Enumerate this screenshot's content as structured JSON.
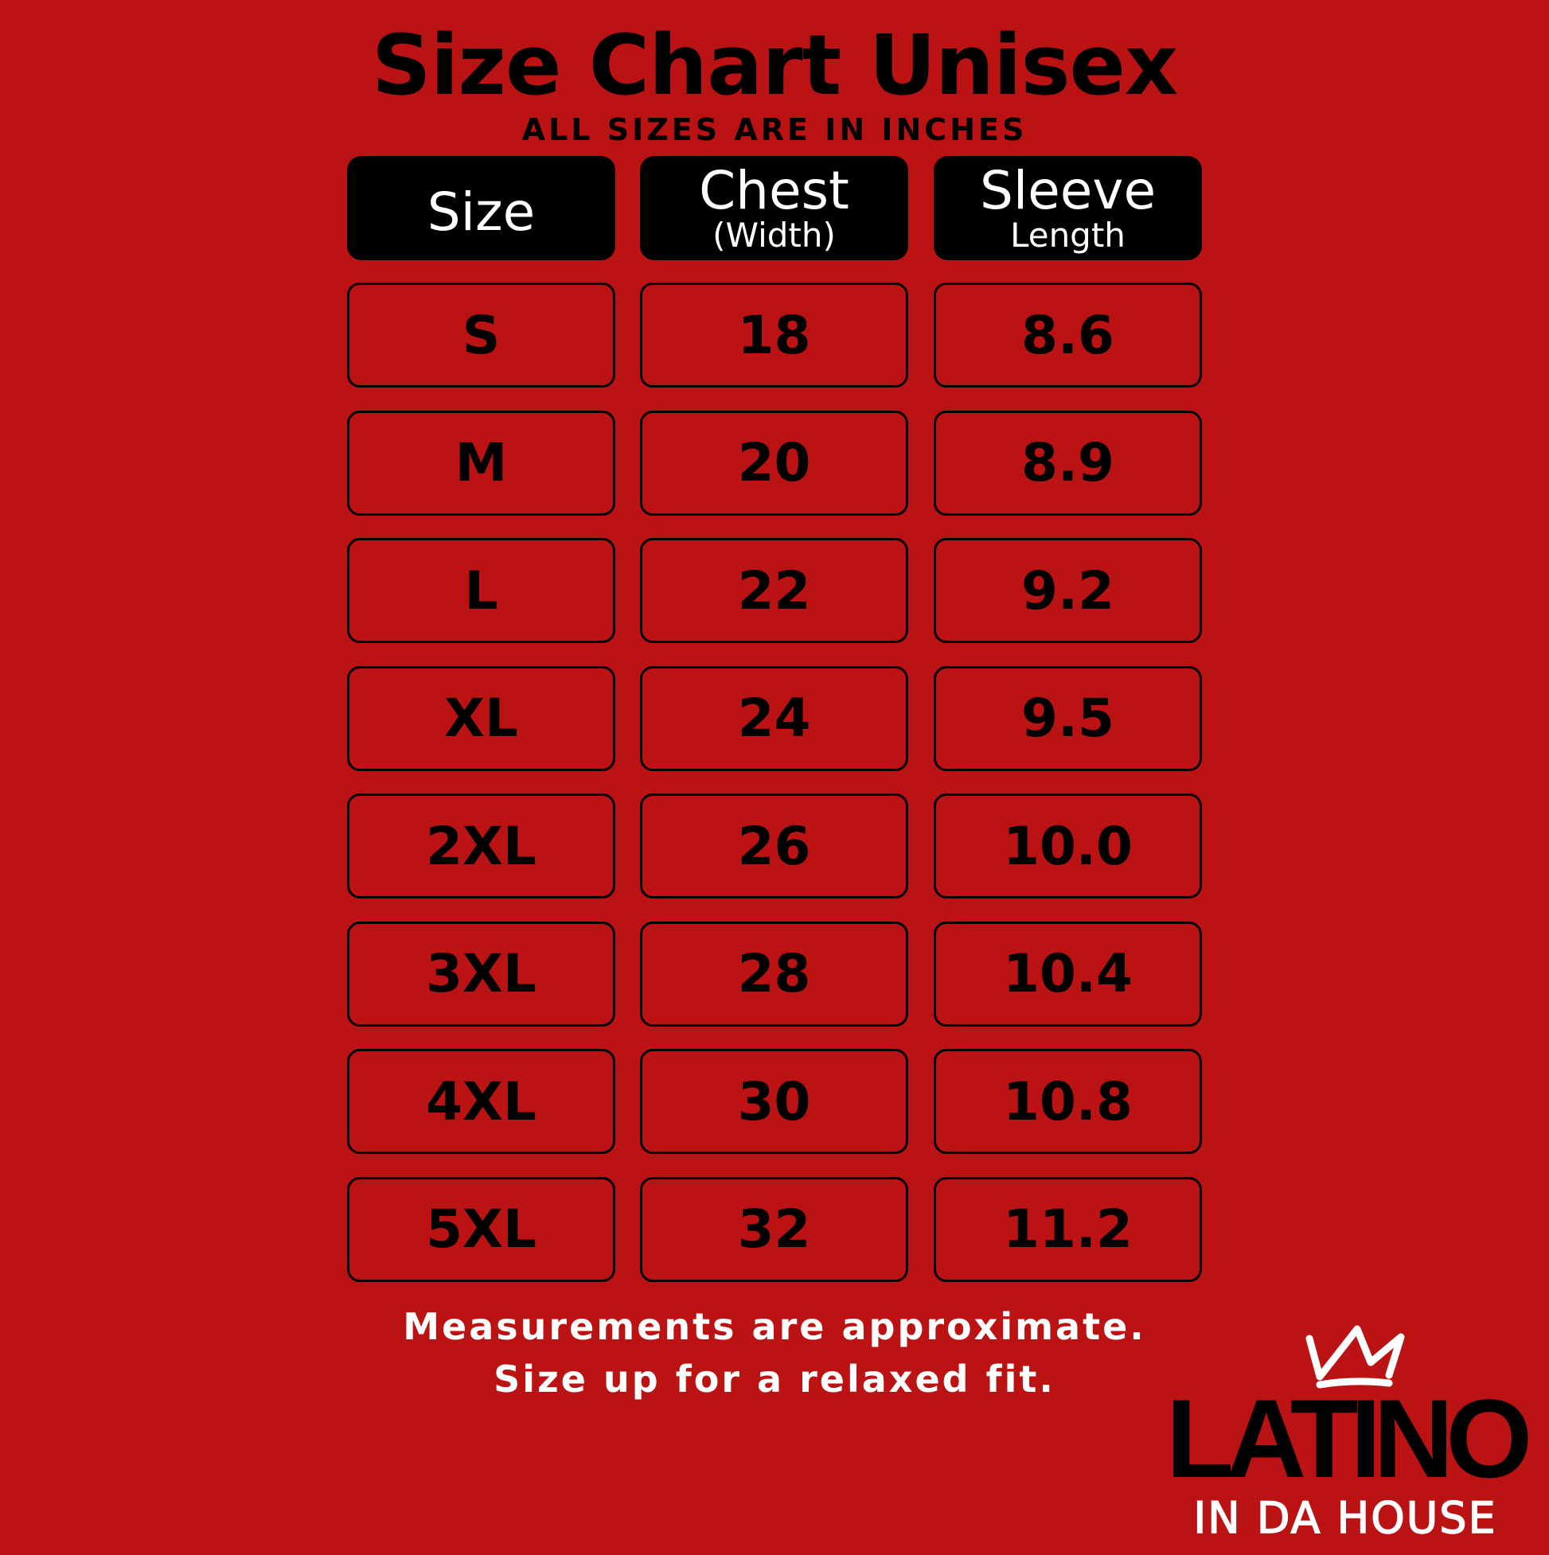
{
  "title": "Size Chart Unisex",
  "subtitle": "ALL SIZES ARE IN INCHES",
  "headers": [
    {
      "main": "Size",
      "sub": ""
    },
    {
      "main": "Chest",
      "sub": "(Width)"
    },
    {
      "main": "Sleeve",
      "sub": "Length"
    }
  ],
  "rows": [
    [
      "S",
      "18",
      "8.6"
    ],
    [
      "M",
      "20",
      "8.9"
    ],
    [
      "L",
      "22",
      "9.2"
    ],
    [
      "XL",
      "24",
      "9.5"
    ],
    [
      "2XL",
      "26",
      "10.0"
    ],
    [
      "3XL",
      "28",
      "10.4"
    ],
    [
      "4XL",
      "30",
      "10.8"
    ],
    [
      "5XL",
      "32",
      "11.2"
    ]
  ],
  "footer": [
    "Measurements are approximate.",
    "Size up for a relaxed fit."
  ],
  "logo": {
    "top": "LATINO",
    "bottom": "IN DA HOUSE",
    "icon": "crown-icon"
  },
  "colors": {
    "background": "#bb1213",
    "header_bg": "#000000",
    "text_light": "#ffffff"
  }
}
